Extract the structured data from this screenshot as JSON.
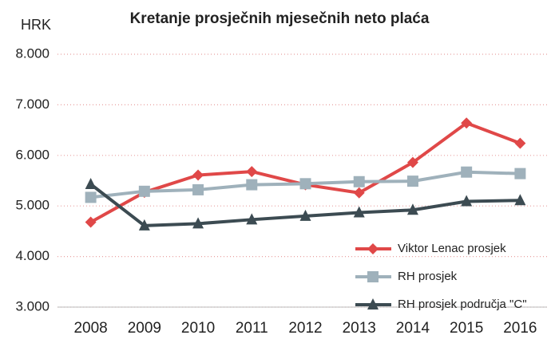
{
  "chart_data": {
    "type": "line",
    "title": "Kretanje prosječnih mjesečnih neto plaća",
    "y_label": "HRK",
    "categories": [
      "2008",
      "2009",
      "2010",
      "2011",
      "2012",
      "2013",
      "2014",
      "2015",
      "2016"
    ],
    "series": [
      {
        "name": "Viktor Lenac prosjek",
        "color": "#e04848",
        "marker": "diamond",
        "values": [
          4680,
          5270,
          5610,
          5680,
          5420,
          5260,
          5860,
          6640,
          6240
        ]
      },
      {
        "name": "RH prosjek",
        "color": "#9fb1bb",
        "marker": "square",
        "values": [
          5170,
          5290,
          5320,
          5420,
          5440,
          5480,
          5490,
          5670,
          5640
        ]
      },
      {
        "name": "RH prosjek područja \"C\"",
        "color": "#3c4b52",
        "marker": "triangle",
        "values": [
          5430,
          4610,
          4650,
          4730,
          4800,
          4870,
          4920,
          5090,
          5110
        ]
      }
    ],
    "ylim": [
      3000,
      8000
    ],
    "yticks": [
      {
        "value": 3000,
        "label": "3.000"
      },
      {
        "value": 4000,
        "label": "4.000"
      },
      {
        "value": 5000,
        "label": "5.000"
      },
      {
        "value": 6000,
        "label": "6.000"
      },
      {
        "value": 7000,
        "label": "7.000"
      },
      {
        "value": 8000,
        "label": "8.000"
      }
    ],
    "grid": true,
    "legend": "lower right"
  }
}
